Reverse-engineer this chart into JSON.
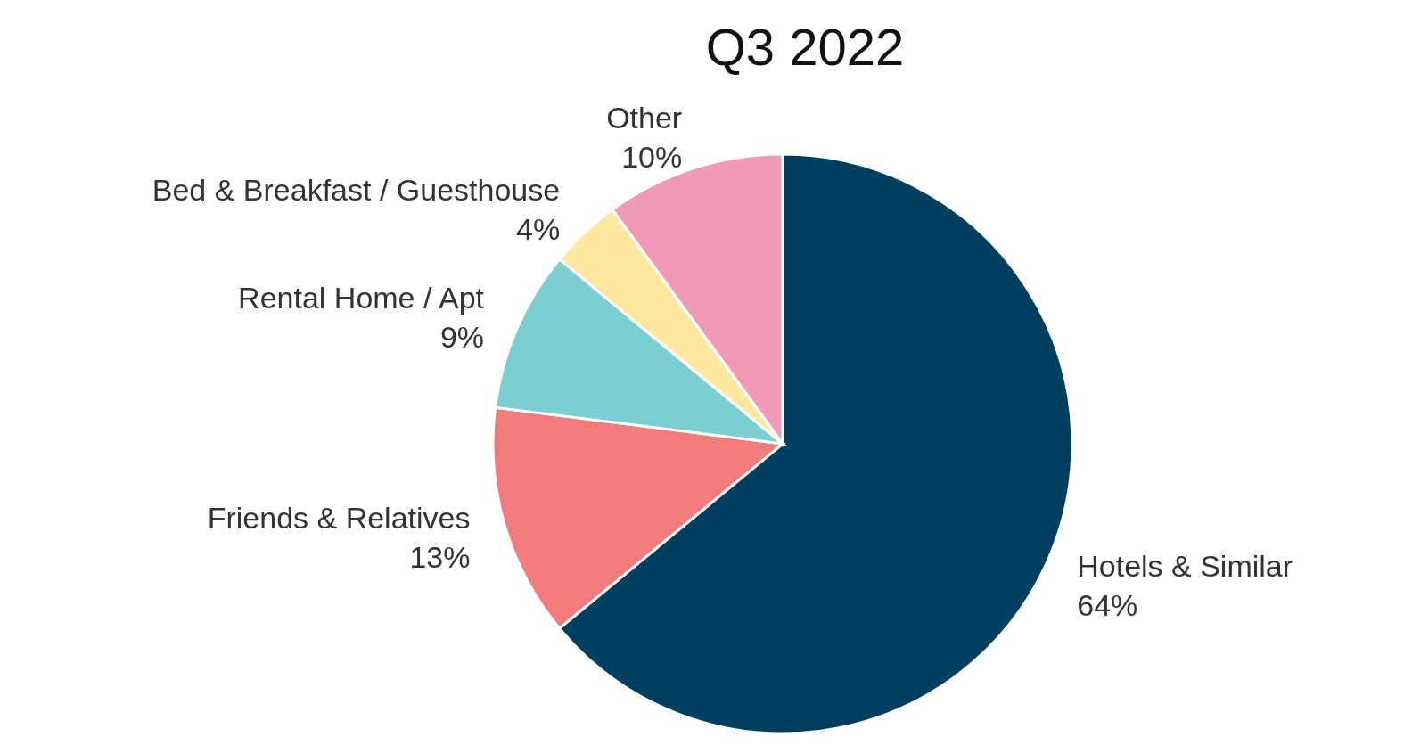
{
  "chart_data": {
    "type": "pie",
    "title": "Q3 2022",
    "categories": [
      "Hotels & Similar",
      "Friends & Relatives",
      "Rental Home / Apt",
      "Bed & Breakfast / Guesthouse",
      "Other"
    ],
    "values": [
      64,
      13,
      9,
      4,
      10
    ],
    "value_labels": [
      "64%",
      "13%",
      "9%",
      "4%",
      "10%"
    ],
    "colors": [
      "#003f5f",
      "#f27b7d",
      "#7ccfd1",
      "#fee8a0",
      "#f19ab8"
    ],
    "legend": false
  }
}
